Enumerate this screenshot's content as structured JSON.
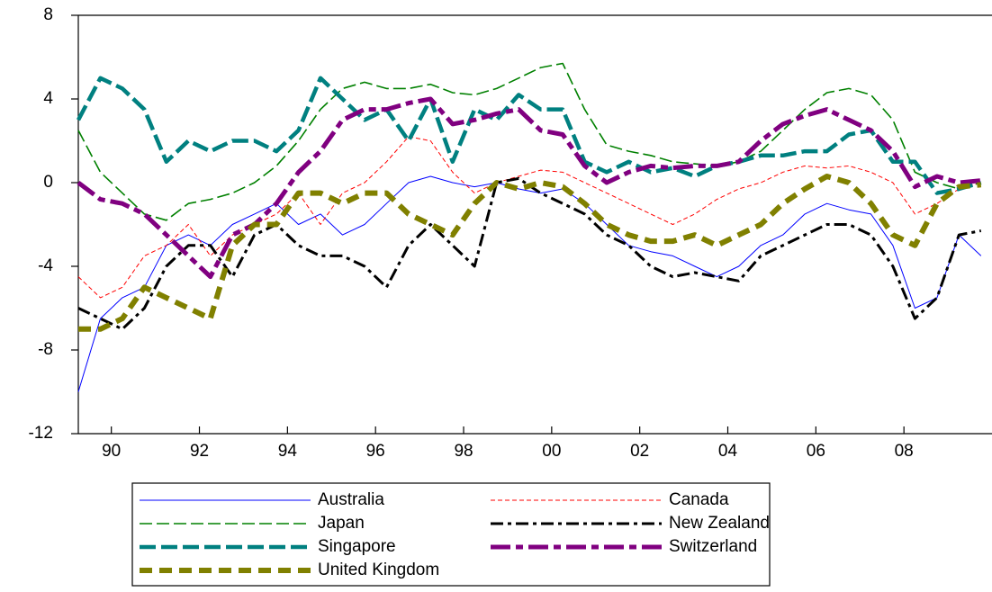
{
  "chart_data": {
    "type": "line",
    "x": [
      1989.75,
      1990.25,
      1990.75,
      1991.25,
      1991.75,
      1992.25,
      1992.75,
      1993.25,
      1993.75,
      1994.25,
      1994.75,
      1995.25,
      1995.75,
      1996.25,
      1996.75,
      1997.25,
      1997.75,
      1998.25,
      1998.75,
      1999.25,
      1999.75,
      2000.25,
      2000.75,
      2001.25,
      2001.75,
      2002.25,
      2002.75,
      2003.25,
      2003.75,
      2004.25,
      2004.75,
      2005.25,
      2005.75,
      2006.25,
      2006.75,
      2007.25,
      2007.75,
      2008.25,
      2008.75,
      2009.25,
      2009.75,
      2010.25
    ],
    "xlim": [
      1989.75,
      2010.5
    ],
    "xticks": [
      {
        "value": 1990.5,
        "label": "90"
      },
      {
        "value": 1992.5,
        "label": "92"
      },
      {
        "value": 1994.5,
        "label": "94"
      },
      {
        "value": 1996.5,
        "label": "96"
      },
      {
        "value": 1998.5,
        "label": "98"
      },
      {
        "value": 2000.5,
        "label": "00"
      },
      {
        "value": 2002.5,
        "label": "02"
      },
      {
        "value": 2004.5,
        "label": "04"
      },
      {
        "value": 2006.5,
        "label": "06"
      },
      {
        "value": 2008.5,
        "label": "08"
      }
    ],
    "ylim": [
      -12,
      8
    ],
    "yticks": [
      -12,
      -8,
      -4,
      0,
      4,
      8
    ],
    "series": [
      {
        "name": "Australia",
        "color": "#0000ff",
        "values": [
          -10,
          -6.5,
          -5.5,
          -5,
          -3,
          -2.5,
          -3,
          -2,
          -1.5,
          -1,
          -2,
          -1.5,
          -2.5,
          -2,
          -1,
          0,
          0.3,
          0,
          -0.2,
          0,
          -0.3,
          -0.5,
          -0.3,
          -1,
          -2,
          -3,
          -3.3,
          -3.5,
          -4,
          -4.5,
          -4,
          -3,
          -2.5,
          -1.5,
          -1,
          -1.3,
          -1.5,
          -3,
          -6,
          -5.5,
          -2.5,
          -3.5
        ]
      },
      {
        "name": "Canada",
        "color": "#ff0000",
        "values": [
          -4.5,
          -5.5,
          -5,
          -3.5,
          -3,
          -2,
          -3.5,
          -2.5,
          -2,
          -1.5,
          -0.5,
          -2,
          -0.5,
          0,
          1,
          2.2,
          2,
          0.5,
          -0.5,
          0,
          0.3,
          0.6,
          0.5,
          0,
          -0.5,
          -1,
          -1.5,
          -2,
          -1.5,
          -0.8,
          -0.3,
          0,
          0.5,
          0.8,
          0.7,
          0.8,
          0.5,
          0,
          -1.5,
          -1,
          -0.3,
          0
        ]
      },
      {
        "name": "Japan",
        "color": "#008000",
        "values": [
          2.5,
          0.5,
          -0.5,
          -1.5,
          -1.8,
          -1,
          -0.8,
          -0.5,
          0,
          0.8,
          2,
          3.5,
          4.5,
          4.8,
          4.5,
          4.5,
          4.7,
          4.3,
          4.2,
          4.5,
          5,
          5.5,
          5.7,
          3.5,
          1.8,
          1.5,
          1.3,
          1,
          0.9,
          0.8,
          1,
          1.5,
          2.5,
          3.5,
          4.3,
          4.5,
          4.2,
          3,
          0.5,
          0,
          -0.3,
          0
        ]
      },
      {
        "name": "New Zealand",
        "color": "#000000",
        "values": [
          -6,
          -6.5,
          -7,
          -6,
          -4,
          -3,
          -3,
          -4.5,
          -2.5,
          -2,
          -3,
          -3.5,
          -3.5,
          -4,
          -5,
          -3,
          -2,
          -3,
          -4,
          0,
          0.2,
          -0.5,
          -1,
          -1.5,
          -2.5,
          -3,
          -4,
          -4.5,
          -4.3,
          -4.5,
          -4.7,
          -3.5,
          -3,
          -2.5,
          -2,
          -2,
          -2.5,
          -4,
          -6.5,
          -5.5,
          -2.5,
          -2.3
        ]
      },
      {
        "name": "Singapore",
        "color": "#008080",
        "values": [
          3,
          5,
          4.5,
          3.5,
          1,
          2,
          1.5,
          2,
          2,
          1.5,
          2.5,
          5,
          4,
          3,
          3.5,
          2,
          4,
          1,
          3.5,
          3,
          4.2,
          3.5,
          3.5,
          1,
          0.5,
          1,
          0.5,
          0.7,
          0.3,
          0.8,
          1,
          1.3,
          1.3,
          1.5,
          1.5,
          2.3,
          2.5,
          1,
          1,
          -0.5,
          -0.3,
          0
        ]
      },
      {
        "name": "Switzerland",
        "color": "#800080",
        "values": [
          0,
          -0.8,
          -1,
          -1.5,
          -2.5,
          -3.5,
          -4.5,
          -2.5,
          -2,
          -1,
          0.5,
          1.5,
          3,
          3.5,
          3.5,
          3.8,
          4,
          2.8,
          3,
          3.3,
          3.5,
          2.5,
          2.3,
          0.8,
          0,
          0.5,
          0.8,
          0.7,
          0.8,
          0.8,
          1,
          2,
          2.8,
          3.2,
          3.5,
          3,
          2.5,
          1.5,
          -0.2,
          0.3,
          0,
          0.1
        ]
      },
      {
        "name": "United Kingdom",
        "color": "#808000",
        "values": [
          -7,
          -7,
          -6.5,
          -5,
          -5.5,
          -6,
          -6.5,
          -3,
          -2,
          -2,
          -0.5,
          -0.5,
          -1,
          -0.5,
          -0.5,
          -1.5,
          -2,
          -2.5,
          -1,
          0,
          -0.3,
          0,
          -0.2,
          -1,
          -2,
          -2.5,
          -2.8,
          -2.8,
          -2.5,
          -3,
          -2.5,
          -2,
          -1,
          -0.3,
          0.3,
          0,
          -1,
          -2.5,
          -3,
          -1,
          -0.2,
          -0.1
        ]
      }
    ]
  }
}
